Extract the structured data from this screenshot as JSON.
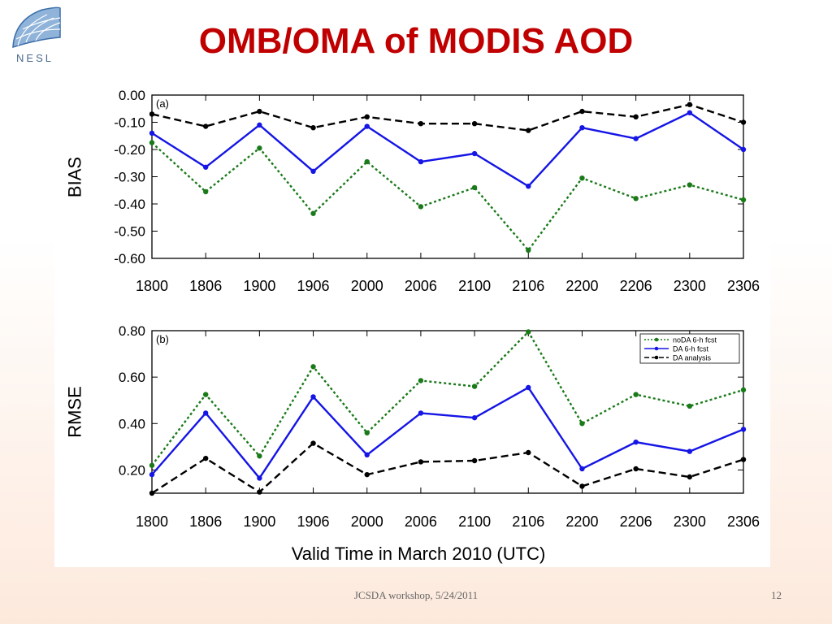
{
  "slide": {
    "title": "OMB/OMA of MODIS AOD",
    "footer": "JCSDA workshop, 5/24/2011",
    "page_number": "12",
    "logo_text": "NESL",
    "title_color": "#c00000"
  },
  "chart_data": [
    {
      "type": "line",
      "panel_label": "(a)",
      "ylabel": "BIAS",
      "xlabel": "",
      "categories": [
        "1800",
        "1806",
        "1900",
        "1906",
        "2000",
        "2006",
        "2100",
        "2106",
        "2200",
        "2206",
        "2300",
        "2306"
      ],
      "ylim": [
        -0.6,
        0.0
      ],
      "yticks": [
        0.0,
        -0.1,
        -0.2,
        -0.3,
        -0.4,
        -0.5,
        -0.6
      ],
      "ytick_labels": [
        "0.00",
        "-0.10",
        "-0.20",
        "-0.30",
        "-0.40",
        "-0.50",
        "-0.60"
      ],
      "series": [
        {
          "name": "noDA 6-h fcst",
          "color": "#1a7a1a",
          "dash": "dotted",
          "values": [
            -0.175,
            -0.355,
            -0.195,
            -0.435,
            -0.245,
            -0.41,
            -0.34,
            -0.57,
            -0.305,
            -0.38,
            -0.33,
            -0.385
          ]
        },
        {
          "name": "DA 6-h fcst",
          "color": "#1515e6",
          "dash": "solid",
          "values": [
            -0.14,
            -0.265,
            -0.11,
            -0.28,
            -0.115,
            -0.245,
            -0.215,
            -0.335,
            -0.12,
            -0.16,
            -0.065,
            -0.2
          ]
        },
        {
          "name": "DA analysis",
          "color": "#000000",
          "dash": "dashed",
          "values": [
            -0.07,
            -0.115,
            -0.06,
            -0.12,
            -0.08,
            -0.105,
            -0.105,
            -0.13,
            -0.06,
            -0.08,
            -0.035,
            -0.1
          ]
        }
      ]
    },
    {
      "type": "line",
      "panel_label": "(b)",
      "ylabel": "RMSE",
      "xlabel": "Valid Time in March 2010 (UTC)",
      "categories": [
        "1800",
        "1806",
        "1900",
        "1906",
        "2000",
        "2006",
        "2100",
        "2106",
        "2200",
        "2206",
        "2300",
        "2306"
      ],
      "ylim": [
        0.1,
        0.8
      ],
      "yticks": [
        0.2,
        0.4,
        0.6,
        0.8
      ],
      "ytick_labels": [
        "0.20",
        "0.40",
        "0.60",
        "0.80"
      ],
      "legend_position": "top-right",
      "series": [
        {
          "name": "noDA 6-h fcst",
          "color": "#1a7a1a",
          "dash": "dotted",
          "values": [
            0.22,
            0.525,
            0.26,
            0.645,
            0.36,
            0.585,
            0.56,
            0.795,
            0.4,
            0.525,
            0.475,
            0.545
          ]
        },
        {
          "name": "DA 6-h fcst",
          "color": "#1515e6",
          "dash": "solid",
          "values": [
            0.18,
            0.445,
            0.165,
            0.515,
            0.265,
            0.445,
            0.425,
            0.555,
            0.205,
            0.32,
            0.28,
            0.375
          ]
        },
        {
          "name": "DA analysis",
          "color": "#000000",
          "dash": "dashed",
          "values": [
            0.1,
            0.25,
            0.105,
            0.315,
            0.18,
            0.235,
            0.24,
            0.275,
            0.13,
            0.205,
            0.17,
            0.245
          ]
        }
      ]
    }
  ]
}
